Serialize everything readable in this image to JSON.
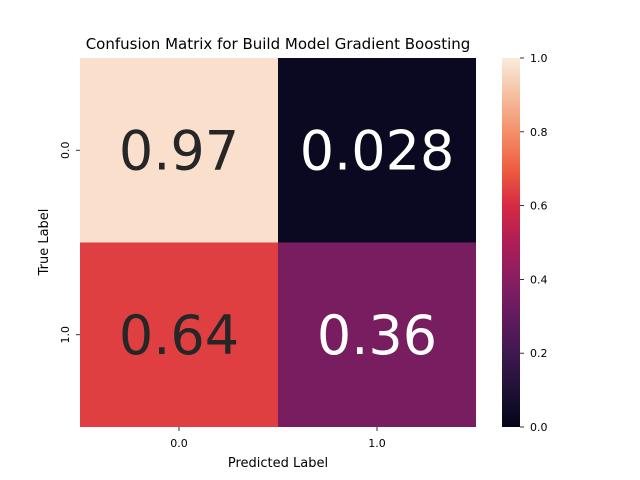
{
  "chart_data": {
    "type": "heatmap",
    "title": "Confusion Matrix for Build Model Gradient Boosting",
    "xlabel": "Predicted Label",
    "ylabel": "True Label",
    "x_categories": [
      "0.0",
      "1.0"
    ],
    "y_categories": [
      "0.0",
      "1.0"
    ],
    "values": [
      [
        0.972,
        0.028
      ],
      [
        0.64,
        0.36
      ]
    ],
    "annotations": [
      [
        "0.97",
        "0.028"
      ],
      [
        "0.64",
        "0.36"
      ]
    ],
    "colorbar": {
      "range": [
        0.0,
        1.0
      ],
      "ticks": [
        "0.0",
        "0.2",
        "0.4",
        "0.6",
        "0.8",
        "1.0"
      ],
      "colormap": "rocket"
    }
  }
}
